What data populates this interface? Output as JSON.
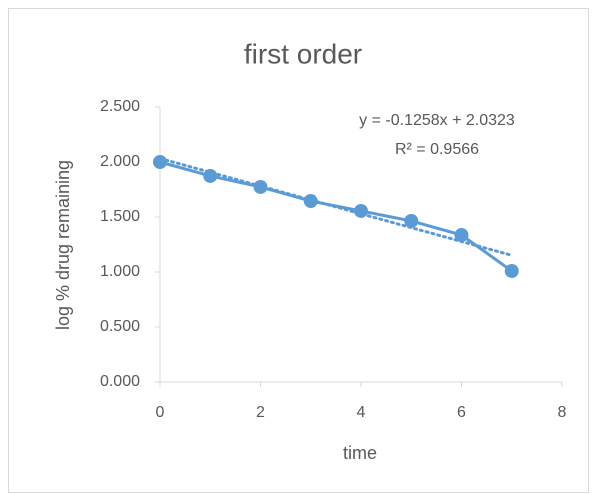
{
  "chart_data": {
    "type": "line",
    "title": "first order",
    "xlabel": "time",
    "ylabel": "log % drug remaining",
    "x": [
      0,
      1,
      2,
      3,
      4,
      5,
      6,
      7
    ],
    "series": [
      {
        "name": "log % drug remaining",
        "color": "#5b9bd5",
        "values": [
          2.0,
          1.873,
          1.773,
          1.645,
          1.555,
          1.464,
          1.336,
          1.009
        ]
      }
    ],
    "trendline": {
      "equation": "y = -0.1258x + 2.0323",
      "r2": "R² = 0.9566",
      "slope": -0.1258,
      "intercept": 2.0323
    },
    "xlim": [
      0,
      8
    ],
    "xticks": [
      0,
      2,
      4,
      6,
      8
    ],
    "ylim": [
      0,
      2.5
    ],
    "yticks": [
      {
        "value": 0,
        "label": "0.000"
      },
      {
        "value": 0.5,
        "label": "0.500"
      },
      {
        "value": 1,
        "label": "1.000"
      },
      {
        "value": 1.5,
        "label": "1.500"
      },
      {
        "value": 2,
        "label": "2.000"
      },
      {
        "value": 2.5,
        "label": "2.500"
      }
    ],
    "grid": false,
    "legend": false
  }
}
